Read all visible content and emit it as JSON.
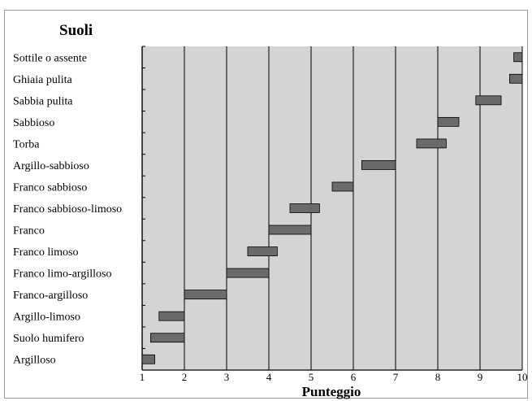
{
  "chart_data": {
    "type": "bar",
    "orientation": "horizontal-range",
    "title": "Suoli",
    "xlabel": "Punteggio",
    "ylabel": "",
    "xlim": [
      1,
      10
    ],
    "xticks": [
      1,
      2,
      3,
      4,
      5,
      6,
      7,
      8,
      9,
      10
    ],
    "grid": true,
    "categories": [
      "Sottile o assente",
      "Ghiaia pulita",
      "Sabbia pulita",
      "Sabbioso",
      "Torba",
      "Argillo-sabbioso",
      "Franco sabbioso",
      "Franco sabbioso-limoso",
      "Franco",
      "Franco limoso",
      "Franco limo-argilloso",
      "Franco-argilloso",
      "Argillo-limoso",
      "Suolo humifero",
      "Argilloso"
    ],
    "ranges": [
      [
        9.8,
        10
      ],
      [
        9.7,
        10
      ],
      [
        8.9,
        9.5
      ],
      [
        8.0,
        8.5
      ],
      [
        7.5,
        8.2
      ],
      [
        6.2,
        7.0
      ],
      [
        5.5,
        6.0
      ],
      [
        4.5,
        5.2
      ],
      [
        4.0,
        5.0
      ],
      [
        3.5,
        4.2
      ],
      [
        3.0,
        4.0
      ],
      [
        2.0,
        3.0
      ],
      [
        1.4,
        2.0
      ],
      [
        1.2,
        2.0
      ],
      [
        1.0,
        1.3
      ]
    ],
    "colors": {
      "plot_background": "#d4d4d4",
      "bar_fill": "#6b6b6b",
      "bar_stroke": "#000000",
      "grid": "#000000"
    }
  }
}
